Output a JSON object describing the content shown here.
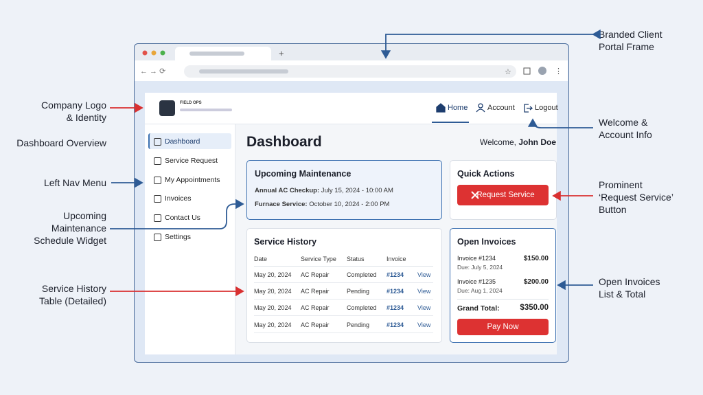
{
  "annotations": {
    "portal_frame": [
      "Branded Client",
      "Portal Frame"
    ],
    "company_logo": [
      "Company Logo",
      "& Identity"
    ],
    "dashboard_overview": [
      "Dashboard Overview"
    ],
    "left_nav": [
      "Left Nav Menu"
    ],
    "upcoming_widget": [
      "Upcoming",
      "Maintenance",
      "Schedule Widget"
    ],
    "service_history": [
      "Service History",
      "Table (Detailed)"
    ],
    "welcome": [
      "Welcome &",
      "Account Info"
    ],
    "request_button": [
      "Prominent",
      "‘Request Service’",
      "Button"
    ],
    "open_invoices": [
      "Open Invoices",
      "List & Total"
    ]
  },
  "header": {
    "logo": "FIELD OPS",
    "nav": [
      "Home",
      "Account",
      "Logout"
    ]
  },
  "sidebar": [
    "Dashboard",
    "Service Request",
    "My Appointments",
    "Invoices",
    "Contact Us",
    "Settings"
  ],
  "main": {
    "title": "Dashboard",
    "welcome": "Welcome,",
    "user": "John Doe"
  },
  "upcoming": {
    "title": "Upcoming Maintenance",
    "items": [
      {
        "label": "Annual AC Checkup:",
        "when": "July 15, 2024 - 10:00 AM"
      },
      {
        "label": "Furnace Service:",
        "when": "October 10, 2024 - 2:00 PM"
      }
    ]
  },
  "quick_actions": {
    "title": "Quick Actions",
    "button": "Request Service"
  },
  "service_history": {
    "title": "Service History",
    "columns": [
      "Date",
      "Service Type",
      "Status",
      "Invoice"
    ],
    "rows": [
      [
        "May 20, 2024",
        "AC Repair",
        "Completed",
        "#1234",
        "View"
      ],
      [
        "May 20, 2024",
        "AC Repair",
        "Pending",
        "#1234",
        "View"
      ],
      [
        "May 20, 2024",
        "AC Repair",
        "Completed",
        "#1234",
        "View"
      ],
      [
        "May 20, 2024",
        "AC Repair",
        "Pending",
        "#1234",
        "View"
      ]
    ]
  },
  "open_invoices": {
    "title": "Open Invoices",
    "items": [
      {
        "invoice": "Invoice #1234",
        "due": "Due: July 5, 2024",
        "amount": "$150.00"
      },
      {
        "invoice": "Invoice #1235",
        "due": "Due: Aug 1, 2024",
        "amount": "$200.00"
      }
    ],
    "total_label": "Grand Total:",
    "total": "$350.00",
    "button": "Pay Now"
  }
}
